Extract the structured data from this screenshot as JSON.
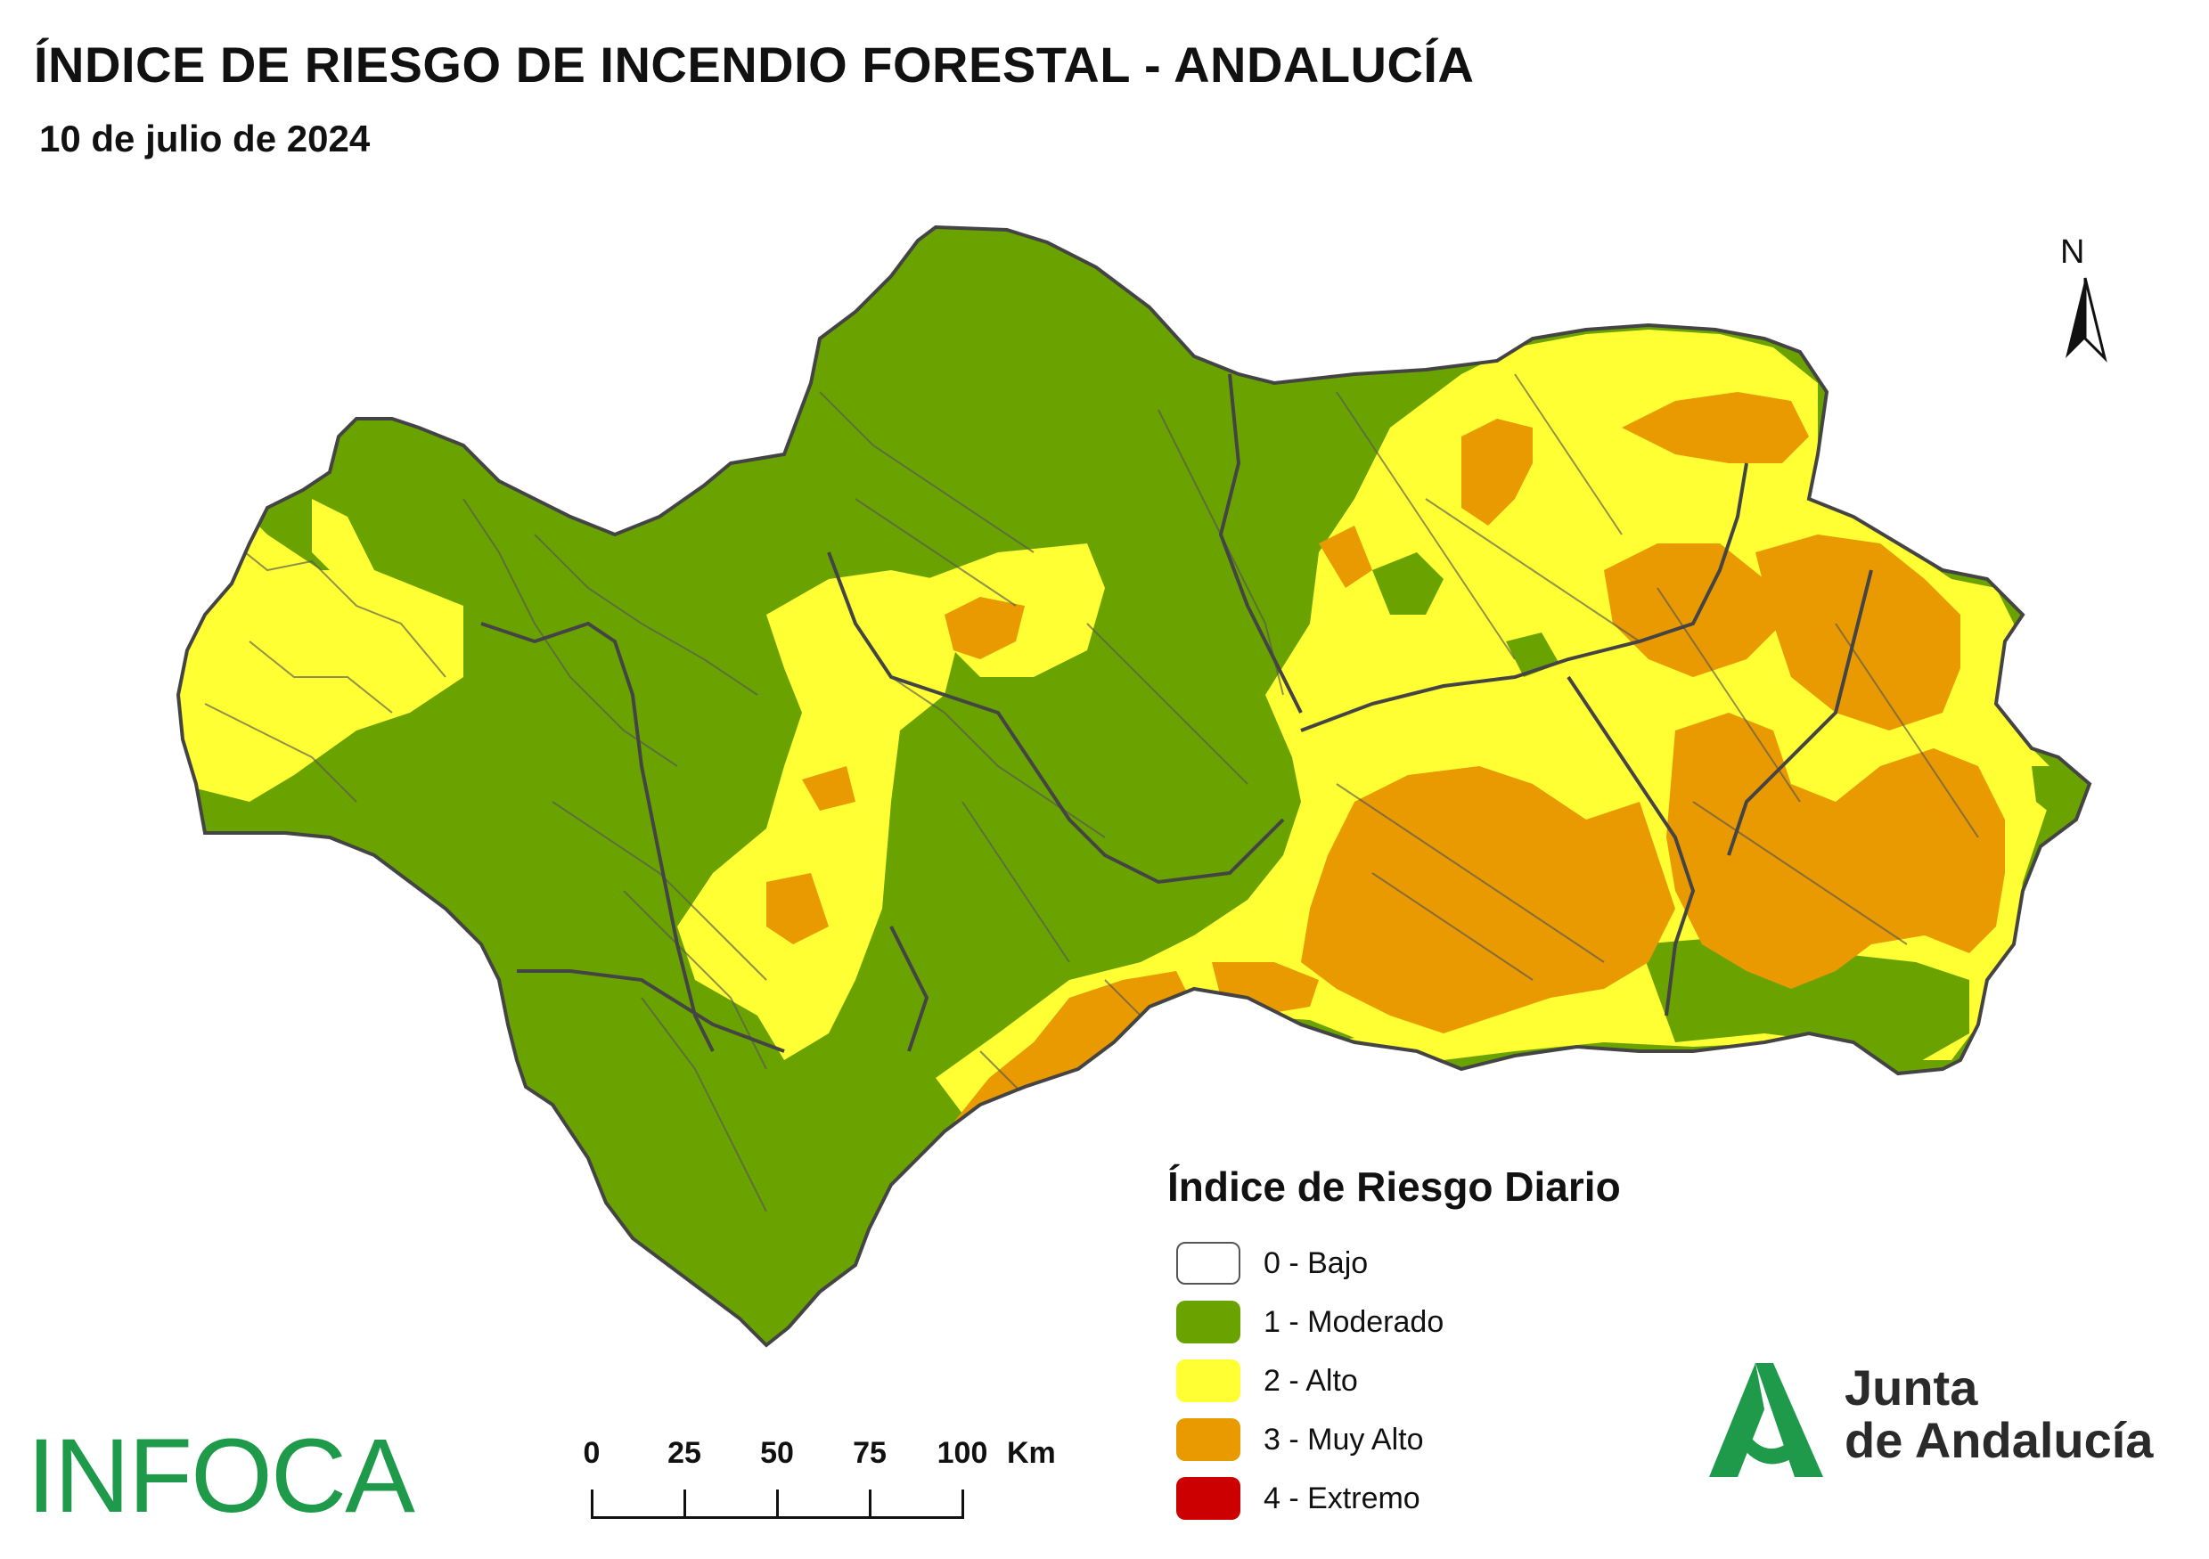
{
  "header": {
    "title": "ÍNDICE DE RIESGO DE INCENDIO FORESTAL - ANDALUCÍA",
    "date": "10 de julio de 2024"
  },
  "north_arrow": {
    "label": "N"
  },
  "legend": {
    "title": "Índice de Riesgo Diario",
    "items": [
      {
        "label": "0 - Bajo",
        "color": "#ffffff"
      },
      {
        "label": "1 - Moderado",
        "color": "#6aa300"
      },
      {
        "label": "2 - Alto",
        "color": "#ffff33"
      },
      {
        "label": "3 - Muy Alto",
        "color": "#e89a00"
      },
      {
        "label": "4 - Extremo",
        "color": "#cc0000"
      }
    ]
  },
  "scale_bar": {
    "ticks": [
      "0",
      "25",
      "50",
      "75",
      "100"
    ],
    "unit": "Km"
  },
  "map": {
    "region": "Andalucía",
    "colors": {
      "moderado": "#6aa300",
      "alto": "#ffff33",
      "muy_alto": "#e89a00",
      "boundaries": "#555555"
    }
  },
  "logos": {
    "infoca": "INFOCA",
    "junta_line1": "Junta",
    "junta_line2": "de Andalucía",
    "junta_color": "#1e9a4a"
  }
}
